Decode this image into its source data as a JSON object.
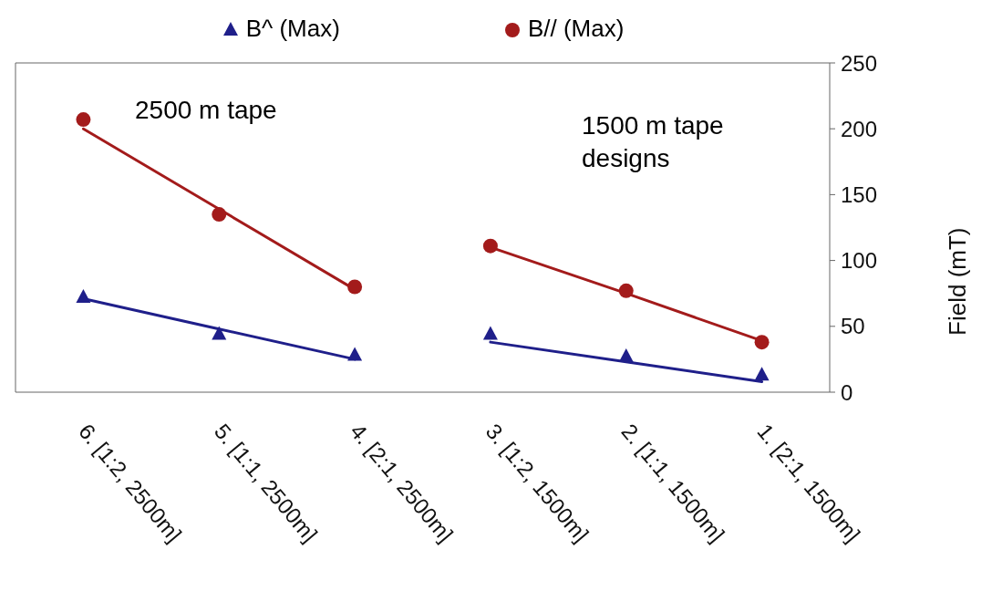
{
  "chart_data": {
    "type": "scatter",
    "ylabel": "Field (mT)",
    "categories": [
      "6. [1:2, 2500m]",
      "5. [1:1, 2500m]",
      "4. [2:1, 2500m]",
      "3. [1:2, 1500m]",
      "2. [1:1, 1500m]",
      "1. [2:1, 1500m]"
    ],
    "series": [
      {
        "name": "B^ (Max)",
        "marker": "triangle",
        "color": "#1f1f8a",
        "values": [
          72,
          44,
          28,
          44,
          27,
          13
        ]
      },
      {
        "name": "B// (Max)",
        "marker": "circle",
        "color": "#a31b1b",
        "values": [
          207,
          135,
          80,
          111,
          77,
          38
        ]
      },
      {
        "type": "line",
        "color": "#1f1f8a",
        "values": [
          71,
          48,
          25,
          null,
          null,
          null
        ]
      },
      {
        "type": "line",
        "color": "#1f1f8a",
        "values": [
          null,
          null,
          null,
          38,
          23,
          8
        ]
      },
      {
        "type": "line",
        "color": "#a31b1b",
        "values": [
          200,
          139,
          78,
          null,
          null,
          null
        ]
      },
      {
        "type": "line",
        "color": "#a31b1b",
        "values": [
          null,
          null,
          null,
          110,
          75,
          39
        ]
      }
    ],
    "ylim": [
      0,
      250
    ],
    "yticks": [
      0,
      50,
      100,
      150,
      200,
      250
    ],
    "legend": "top",
    "annotations": [
      "2500 m tape",
      "1500 m tape designs"
    ]
  }
}
